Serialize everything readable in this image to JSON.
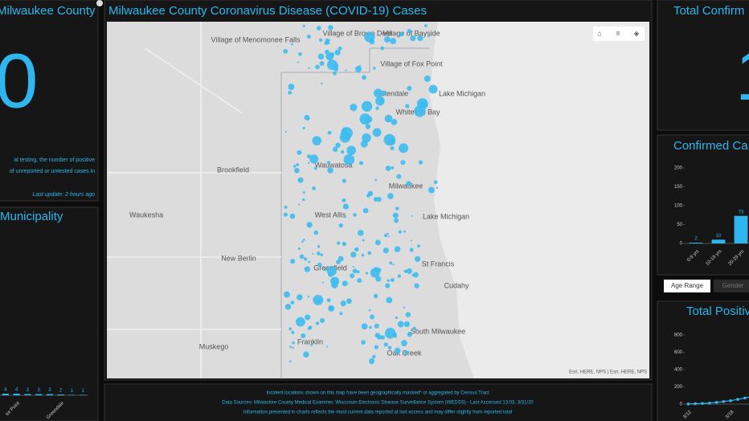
{
  "left_panel": {
    "title": "Milwaukee County",
    "big_number": "0",
    "note_lines": [
      "al testing, the number of positive",
      "of unreported or untested cases in"
    ],
    "update": "Last update: 2 hours ago"
  },
  "municipality_panel": {
    "title": "Municipality"
  },
  "map_panel": {
    "title": "Milwaukee County Coronavirus Disease (COVID-19) Cases",
    "labels": [
      "Village of Menomonee Falls",
      "Village of Brown Deer",
      "Village of Bayside",
      "Village of Fox Point",
      "Glendale",
      "Whitefish Bay",
      "Lake Michigan",
      "Brookfield",
      "Wauwatosa",
      "Milwaukee",
      "Waukesha",
      "West Allis",
      "Lake Michigan",
      "New Berlin",
      "Greenfield",
      "St Francis",
      "Cudahy",
      "South Milwaukee",
      "Franklin",
      "Muskego",
      "Oak Creek"
    ],
    "attribution": "Esri, HERE, NPS | Esri, HERE, NPS"
  },
  "footer": {
    "lines": [
      "Incident locations shown on this map have been geographically masked* or aggregated by Census Tract",
      "Data Sources: Milwaukee County Medical Examiner, Wisconsin Electronic Disease Surveillance System (WEDSS) - Last Accessed 13:03, 3/31/20",
      "Information presented in charts reflects the most current data reported at last access and may differ slightly from reported total"
    ]
  },
  "right_panels": {
    "total_title": "Total Confirm",
    "total_number": "1",
    "age_title": "Confirmed Ca",
    "tabs": [
      "Age Range",
      "Gender"
    ],
    "trend_title": "Total Positiv"
  },
  "chart_data": [
    {
      "type": "bar",
      "categories": [
        null,
        "ee Point",
        null,
        null,
        null,
        "Greendale",
        null,
        null
      ],
      "values": [
        4,
        4,
        3,
        3,
        3,
        2,
        1,
        1
      ],
      "ylim": [
        0,
        400
      ],
      "color": "#2fb6ef"
    },
    {
      "type": "bar",
      "categories": [
        "0-9 yrs",
        "10-19 yrs",
        "20-29 yrs"
      ],
      "values": [
        2,
        10,
        73
      ],
      "ylim": [
        0,
        200
      ],
      "yticks": [
        0,
        50,
        100,
        150,
        200
      ],
      "color": "#2fb6ef",
      "grid": false
    },
    {
      "type": "line",
      "categories": [
        "3/12",
        null,
        null,
        null,
        null,
        null,
        "3/18",
        null,
        null,
        null
      ],
      "values": [
        2,
        5,
        8,
        12,
        20,
        30,
        40,
        55,
        70,
        90
      ],
      "ylim": [
        0,
        800
      ],
      "yticks": [
        0,
        200,
        400,
        600,
        800
      ],
      "color": "#2fb6ef",
      "grid": false
    }
  ]
}
